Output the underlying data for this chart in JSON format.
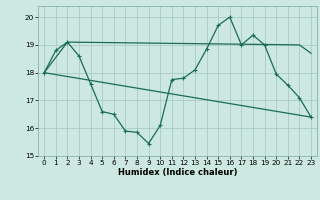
{
  "title": "",
  "xlabel": "Humidex (Indice chaleur)",
  "bg_color": "#cce8e0",
  "grid_color": "#aaccC4",
  "line_color": "#1a6b5a",
  "xlim": [
    -0.5,
    23.5
  ],
  "ylim": [
    15,
    20.4
  ],
  "yticks": [
    15,
    16,
    17,
    18,
    19,
    20
  ],
  "xticks": [
    0,
    1,
    2,
    3,
    4,
    5,
    6,
    7,
    8,
    9,
    10,
    11,
    12,
    13,
    14,
    15,
    16,
    17,
    18,
    19,
    20,
    21,
    22,
    23
  ],
  "line1_x": [
    0,
    1,
    2,
    3,
    4,
    5,
    6,
    7,
    8,
    9,
    10,
    11,
    12,
    13,
    14,
    15,
    16,
    17,
    18,
    19,
    20,
    21,
    22,
    23
  ],
  "line1_y": [
    18.0,
    18.8,
    19.1,
    18.6,
    17.6,
    16.6,
    16.5,
    15.9,
    15.85,
    15.45,
    16.1,
    17.75,
    17.8,
    18.1,
    18.85,
    19.7,
    20.0,
    19.0,
    19.35,
    19.0,
    17.95,
    17.55,
    17.1,
    16.4
  ],
  "line2_x": [
    0,
    23
  ],
  "line2_y": [
    18.0,
    16.4
  ],
  "line3_x": [
    0,
    2,
    22,
    23
  ],
  "line3_y": [
    18.0,
    19.1,
    19.0,
    18.7
  ],
  "xlabel_fontsize": 6,
  "tick_fontsize": 5.2
}
